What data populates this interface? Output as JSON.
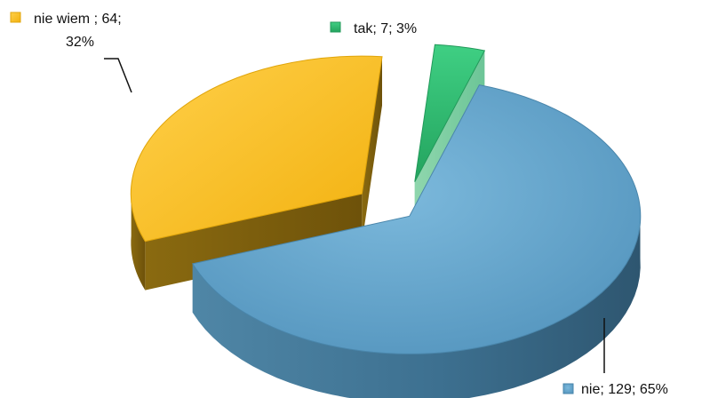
{
  "chart_data": {
    "type": "pie",
    "title": "",
    "slices": [
      {
        "name": "tak",
        "value": 7,
        "percent": 3,
        "color": "#2fb86f",
        "label_line1": "tak; 7; 3%",
        "label_line2": ""
      },
      {
        "name": "nie",
        "value": 129,
        "percent": 65,
        "color": "#5b9fc6",
        "label_line1": "nie; 129; 65%",
        "label_line2": ""
      },
      {
        "name": "nie wiem",
        "value": 64,
        "percent": 32,
        "color": "#f7bb1c",
        "label_line1": "nie wiem ; 64;",
        "label_line2": "32%"
      }
    ]
  }
}
